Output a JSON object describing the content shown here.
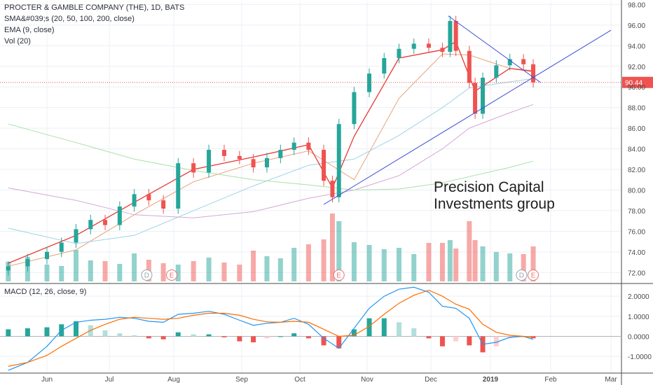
{
  "legend": {
    "symbol_line": "PROCTER & GAMBLE COMPANY (THE), 1D, BATS",
    "sma_line": "SMA&#039;s (20, 50, 100, 200, close)",
    "ema_line": "EMA (9, close)",
    "vol_line": "Vol (20)",
    "macd_line": "MACD (12, 26, close, 9)"
  },
  "watermark": {
    "line1": "Precision Capital",
    "line2": "Investments group"
  },
  "colors": {
    "up": "#26a69a",
    "down": "#ef5350",
    "trendline": "#3f51d6",
    "price_line": "#ef5350",
    "macd": "#2196f3",
    "signal": "#ff6d00",
    "grid": "#eceff5",
    "axis_text": "#4a4a4a"
  },
  "chart_data": [
    {
      "type": "candlestick",
      "title": "PROCTER & GAMBLE COMPANY (THE), 1D, BATS",
      "x_ticks": [
        "Jun",
        "Jul",
        "Aug",
        "Sep",
        "Oct",
        "Nov",
        "Dec",
        "2019",
        "Feb",
        "Mar"
      ],
      "y_ticks": [
        72.0,
        74.0,
        76.0,
        78.0,
        80.0,
        82.0,
        84.0,
        86.0,
        88.0,
        90.0,
        92.0,
        94.0,
        96.0,
        98.0
      ],
      "ylim": [
        71,
        98.3
      ],
      "last_price": 90.44,
      "last_price_label": "90.44",
      "event_markers": [
        {
          "label": "D",
          "date": "2018-07-19"
        },
        {
          "label": "E",
          "date": "2018-07-31"
        },
        {
          "label": "E",
          "date": "2018-10-19"
        },
        {
          "label": "D",
          "date": "2019-01-17"
        },
        {
          "label": "E",
          "date": "2019-01-23"
        }
      ],
      "close_series": {
        "dates": [
          "2018-05-18",
          "2018-05-25",
          "2018-06-01",
          "2018-06-08",
          "2018-06-15",
          "2018-06-22",
          "2018-06-29",
          "2018-07-06",
          "2018-07-13",
          "2018-07-20",
          "2018-07-27",
          "2018-08-03",
          "2018-08-10",
          "2018-08-17",
          "2018-08-24",
          "2018-08-31",
          "2018-09-07",
          "2018-09-14",
          "2018-09-21",
          "2018-09-28",
          "2018-10-05",
          "2018-10-12",
          "2018-10-16",
          "2018-10-19",
          "2018-10-26",
          "2018-11-02",
          "2018-11-09",
          "2018-11-16",
          "2018-11-23",
          "2018-11-30",
          "2018-12-07",
          "2018-12-11",
          "2018-12-14",
          "2018-12-21",
          "2018-12-24",
          "2018-12-28",
          "2019-01-04",
          "2019-01-11",
          "2019-01-18",
          "2019-01-23"
        ],
        "values": [
          72.6,
          73.3,
          74.0,
          74.9,
          76.2,
          77.1,
          76.6,
          78.4,
          79.6,
          79.0,
          78.2,
          82.6,
          81.7,
          83.9,
          83.3,
          83.0,
          82.2,
          83.1,
          83.9,
          84.6,
          83.9,
          80.9,
          79.3,
          86.4,
          89.5,
          91.3,
          92.8,
          93.7,
          94.2,
          93.8,
          93.4,
          96.4,
          93.5,
          90.4,
          87.4,
          90.9,
          92.1,
          92.7,
          92.2,
          90.44
        ]
      },
      "trendlines": [
        {
          "name": "lower",
          "from": {
            "date": "2018-10-12",
            "value": 78.6
          },
          "to": {
            "date": "2019-03-01",
            "value": 95.5
          }
        },
        {
          "name": "upper",
          "from": {
            "date": "2018-12-10",
            "value": 96.9
          },
          "to": {
            "date": "2019-01-27",
            "value": 90.4
          }
        }
      ],
      "moving_averages": [
        {
          "name": "SMA 20",
          "color": "#e8a27a",
          "dates": [
            "2018-05-18",
            "2018-06-15",
            "2018-07-13",
            "2018-08-10",
            "2018-09-07",
            "2018-10-05",
            "2018-10-26",
            "2018-11-16",
            "2018-12-07",
            "2018-12-21",
            "2019-01-11",
            "2019-01-23"
          ],
          "values": [
            72.6,
            74.2,
            77.6,
            80.8,
            82.6,
            83.8,
            81.0,
            88.9,
            93.2,
            93.1,
            91.8,
            91.6
          ]
        },
        {
          "name": "SMA 50",
          "color": "#9fd3e8",
          "dates": [
            "2018-05-18",
            "2018-06-15",
            "2018-07-13",
            "2018-08-10",
            "2018-09-07",
            "2018-10-05",
            "2018-10-26",
            "2018-11-16",
            "2018-12-07",
            "2018-12-21",
            "2019-01-11",
            "2019-01-23"
          ],
          "values": [
            76.3,
            74.8,
            75.6,
            78.0,
            80.4,
            82.4,
            83.0,
            85.3,
            88.0,
            89.9,
            90.5,
            90.8
          ]
        },
        {
          "name": "SMA 100",
          "color": "#d6a8d6",
          "dates": [
            "2018-05-18",
            "2018-06-15",
            "2018-07-13",
            "2018-08-10",
            "2018-09-07",
            "2018-10-05",
            "2018-10-26",
            "2018-11-16",
            "2018-12-07",
            "2018-12-21",
            "2019-01-11",
            "2019-01-23"
          ],
          "values": [
            80.2,
            79.0,
            77.6,
            77.3,
            77.9,
            79.2,
            80.0,
            81.4,
            84.0,
            86.0,
            87.5,
            88.3
          ]
        },
        {
          "name": "SMA 200",
          "color": "#a9e0a9",
          "dates": [
            "2018-05-18",
            "2018-06-15",
            "2018-07-13",
            "2018-08-10",
            "2018-09-07",
            "2018-10-05",
            "2018-10-26",
            "2018-11-16",
            "2018-12-07",
            "2018-12-21",
            "2019-01-11",
            "2019-01-23"
          ],
          "values": [
            86.4,
            84.6,
            83.0,
            81.9,
            81.0,
            80.5,
            80.0,
            80.1,
            80.7,
            81.3,
            82.2,
            82.8
          ]
        },
        {
          "name": "EMA 9",
          "color": "#e53935",
          "dates": [
            "2018-05-18",
            "2018-06-15",
            "2018-07-13",
            "2018-08-10",
            "2018-09-07",
            "2018-10-05",
            "2018-10-16",
            "2018-10-26",
            "2018-11-16",
            "2018-12-07",
            "2018-12-14",
            "2018-12-24",
            "2019-01-11",
            "2019-01-23"
          ],
          "values": [
            72.9,
            75.6,
            78.8,
            82.0,
            83.2,
            84.4,
            80.2,
            85.2,
            92.8,
            93.6,
            94.4,
            89.6,
            91.8,
            91.5
          ]
        }
      ]
    },
    {
      "type": "bar",
      "title": "Vol (20)",
      "values_relative": [
        0.28,
        0.35,
        0.24,
        0.22,
        0.45,
        0.3,
        0.29,
        0.25,
        0.4,
        0.31,
        0.26,
        0.24,
        0.29,
        0.34,
        0.27,
        0.24,
        0.44,
        0.36,
        0.33,
        0.48,
        0.53,
        0.6,
        0.97,
        0.86,
        0.56,
        0.52,
        0.46,
        0.48,
        0.39,
        0.55,
        0.55,
        0.59,
        0.47,
        0.86,
        0.59,
        0.5,
        0.42,
        0.4,
        0.39,
        0.5
      ]
    },
    {
      "type": "line",
      "title": "MACD (12, 26, close, 9)",
      "y_ticks": [
        -1.0,
        0.0,
        1.0,
        2.0
      ],
      "y_tick_labels": [
        "-1.0000",
        "0.0000",
        "1.0000",
        "2.0000"
      ],
      "ylim": [
        -1.8,
        2.6
      ],
      "series": [
        {
          "name": "MACD",
          "dates": [
            "2018-05-18",
            "2018-05-25",
            "2018-06-01",
            "2018-06-08",
            "2018-06-15",
            "2018-06-22",
            "2018-06-29",
            "2018-07-06",
            "2018-07-13",
            "2018-07-20",
            "2018-07-27",
            "2018-08-03",
            "2018-08-10",
            "2018-08-17",
            "2018-08-24",
            "2018-08-31",
            "2018-09-07",
            "2018-09-14",
            "2018-09-21",
            "2018-09-28",
            "2018-10-05",
            "2018-10-12",
            "2018-10-19",
            "2018-10-26",
            "2018-11-02",
            "2018-11-09",
            "2018-11-16",
            "2018-11-23",
            "2018-11-30",
            "2018-12-07",
            "2018-12-14",
            "2018-12-21",
            "2018-12-28",
            "2019-01-04",
            "2019-01-11",
            "2019-01-18",
            "2019-01-23"
          ],
          "values": [
            -1.7,
            -1.3,
            -0.5,
            0.3,
            0.7,
            0.8,
            0.85,
            0.95,
            0.9,
            0.75,
            0.7,
            1.1,
            1.15,
            1.25,
            1.1,
            0.8,
            0.55,
            0.65,
            0.7,
            0.9,
            0.6,
            -0.1,
            -0.6,
            0.4,
            1.4,
            2.0,
            2.35,
            2.45,
            2.2,
            1.5,
            1.4,
            0.9,
            -0.4,
            -0.3,
            -0.05,
            0.0,
            -0.15
          ]
        },
        {
          "name": "Signal",
          "dates": [
            "2018-05-18",
            "2018-05-25",
            "2018-06-01",
            "2018-06-08",
            "2018-06-15",
            "2018-06-22",
            "2018-06-29",
            "2018-07-06",
            "2018-07-13",
            "2018-07-20",
            "2018-07-27",
            "2018-08-03",
            "2018-08-10",
            "2018-08-17",
            "2018-08-24",
            "2018-08-31",
            "2018-09-07",
            "2018-09-14",
            "2018-09-21",
            "2018-09-28",
            "2018-10-05",
            "2018-10-12",
            "2018-10-19",
            "2018-10-26",
            "2018-11-02",
            "2018-11-09",
            "2018-11-16",
            "2018-11-23",
            "2018-11-30",
            "2018-12-07",
            "2018-12-14",
            "2018-12-21",
            "2018-12-28",
            "2019-01-04",
            "2019-01-11",
            "2019-01-18",
            "2019-01-23"
          ],
          "values": [
            -1.5,
            -1.3,
            -0.95,
            -0.5,
            -0.1,
            0.3,
            0.6,
            0.85,
            0.95,
            0.9,
            0.85,
            0.9,
            1.05,
            1.15,
            1.15,
            1.05,
            0.85,
            0.72,
            0.7,
            0.75,
            0.7,
            0.35,
            0.0,
            0.05,
            0.5,
            1.1,
            1.65,
            2.05,
            2.3,
            2.0,
            1.6,
            1.35,
            0.6,
            0.2,
            0.05,
            0.0,
            -0.05
          ]
        }
      ],
      "histogram": {
        "dates": [
          "2018-05-18",
          "2018-05-25",
          "2018-06-01",
          "2018-06-08",
          "2018-06-15",
          "2018-06-22",
          "2018-06-29",
          "2018-07-06",
          "2018-07-13",
          "2018-07-20",
          "2018-07-27",
          "2018-08-03",
          "2018-08-10",
          "2018-08-17",
          "2018-08-24",
          "2018-08-31",
          "2018-09-07",
          "2018-09-14",
          "2018-09-21",
          "2018-09-28",
          "2018-10-05",
          "2018-10-12",
          "2018-10-19",
          "2018-10-26",
          "2018-11-02",
          "2018-11-09",
          "2018-11-16",
          "2018-11-23",
          "2018-11-30",
          "2018-12-07",
          "2018-12-14",
          "2018-12-21",
          "2018-12-28",
          "2019-01-04",
          "2019-01-11",
          "2019-01-18",
          "2019-01-23"
        ],
        "values": [
          0.35,
          0.4,
          0.45,
          0.6,
          0.75,
          0.55,
          0.3,
          0.15,
          0.05,
          -0.1,
          -0.15,
          0.2,
          0.1,
          0.1,
          -0.05,
          -0.25,
          -0.3,
          -0.1,
          0.0,
          0.15,
          -0.1,
          -0.45,
          -0.6,
          0.35,
          0.9,
          0.9,
          0.7,
          0.4,
          -0.1,
          -0.5,
          -0.25,
          -0.45,
          -0.8,
          -0.5,
          -0.1,
          0.0,
          -0.1
        ]
      }
    }
  ]
}
